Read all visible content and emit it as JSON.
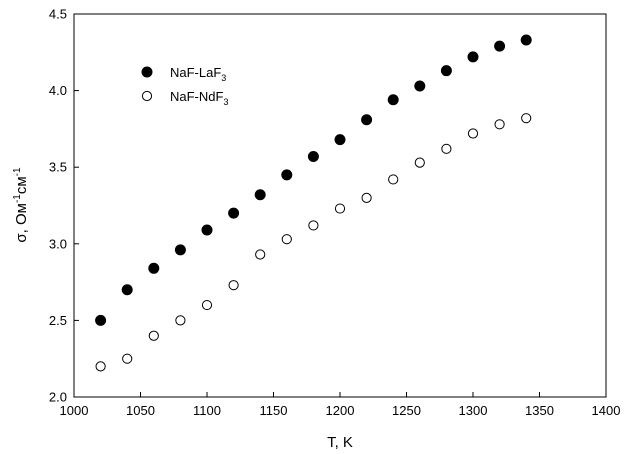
{
  "chart_data": {
    "type": "scatter",
    "xlabel": "T, K",
    "ylabel": {
      "base": "σ, Ом",
      "exp1": "-1",
      "mid": "см",
      "exp2": "-1"
    },
    "xlim": [
      1000,
      1400
    ],
    "ylim": [
      2.0,
      4.5
    ],
    "x_ticks": [
      1000,
      1050,
      1100,
      1150,
      1200,
      1250,
      1300,
      1350,
      1400
    ],
    "y_ticks": [
      "2.0",
      "2.5",
      "3.0",
      "3.5",
      "4.0",
      "4.5"
    ],
    "grid": false,
    "legend_position": "top-left",
    "series": [
      {
        "name": "NaF-LaF",
        "name_subscript": "3",
        "marker": "filled-circle",
        "color": "#000000",
        "x": [
          1020,
          1040,
          1060,
          1080,
          1100,
          1120,
          1140,
          1160,
          1180,
          1200,
          1220,
          1240,
          1260,
          1280,
          1300,
          1320,
          1340
        ],
        "y": [
          2.5,
          2.7,
          2.84,
          2.96,
          3.09,
          3.2,
          3.32,
          3.45,
          3.57,
          3.68,
          3.81,
          3.94,
          4.03,
          4.13,
          4.22,
          4.29,
          4.33
        ]
      },
      {
        "name": "NaF-NdF",
        "name_subscript": "3",
        "marker": "open-circle",
        "color": "#000000",
        "x": [
          1020,
          1040,
          1060,
          1080,
          1100,
          1120,
          1140,
          1160,
          1180,
          1200,
          1220,
          1240,
          1260,
          1280,
          1300,
          1320,
          1340
        ],
        "y": [
          2.2,
          2.25,
          2.4,
          2.5,
          2.6,
          2.73,
          2.93,
          3.03,
          3.12,
          3.23,
          3.3,
          3.42,
          3.53,
          3.62,
          3.72,
          3.78,
          3.82
        ]
      }
    ]
  }
}
